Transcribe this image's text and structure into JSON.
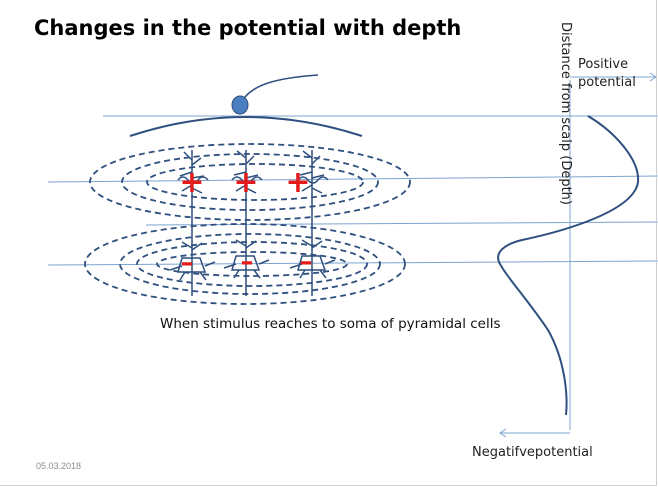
{
  "title": "Changes in the potential with depth",
  "caption": "When stimulus reaches to soma of pyramidal cells",
  "axis": {
    "positive_label_line1": "Positive",
    "positive_label_line2": "potential",
    "negative_label": "Negatifvepotential",
    "depth_label": "Distance from scalp (Depth)"
  },
  "footer": {
    "date": "05.03.2018"
  },
  "signs": {
    "upper": [
      "+",
      "+",
      "+"
    ],
    "lower": [
      "–",
      "–",
      "–"
    ]
  },
  "colors": {
    "lines": "#2f4f7f",
    "guide_lines": "#7da4d0",
    "plus": "#e31b1b",
    "minus": "#e31b1b",
    "electrode": "#4a7fc1"
  }
}
